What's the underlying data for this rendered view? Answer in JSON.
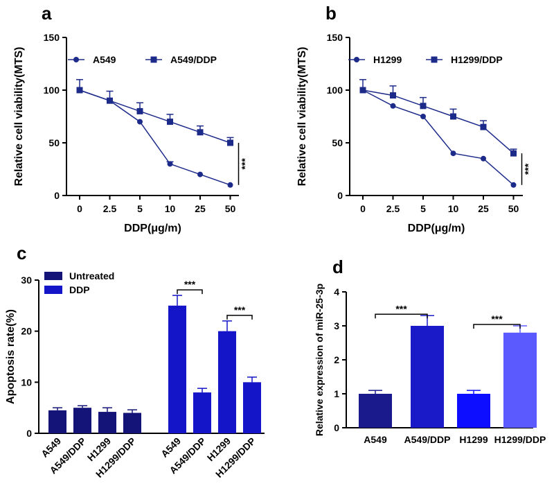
{
  "chart_data": [
    {
      "panel": "a",
      "type": "line",
      "xlabel": "DDP(μg/m)",
      "ylabel": "Relative  cell viability(MTS)",
      "categories": [
        "0",
        "2.5",
        "5",
        "10",
        "25",
        "50"
      ],
      "ylim": [
        0,
        150
      ],
      "yticks": [
        "0",
        "50",
        "100",
        "150"
      ],
      "legend_position": "top-left",
      "series": [
        {
          "name": "A549",
          "marker": "circle",
          "values": [
            100,
            90,
            70,
            30,
            20,
            10
          ],
          "errors": [
            0,
            0,
            0,
            2,
            0,
            0
          ]
        },
        {
          "name": "A549/DDP",
          "marker": "square",
          "values": [
            100,
            90,
            80,
            70,
            60,
            50
          ],
          "errors": [
            10,
            9,
            8,
            7,
            6,
            5
          ]
        }
      ],
      "significance": "***"
    },
    {
      "panel": "b",
      "type": "line",
      "xlabel": "DDP(μg/m)",
      "ylabel": "Relative  cell viability(MTS)",
      "categories": [
        "0",
        "2.5",
        "5",
        "10",
        "25",
        "50"
      ],
      "ylim": [
        0,
        150
      ],
      "yticks": [
        "0",
        "50",
        "100",
        "150"
      ],
      "legend_position": "top-left",
      "series": [
        {
          "name": "H1299",
          "marker": "circle",
          "values": [
            100,
            85,
            75,
            40,
            35,
            10
          ],
          "errors": [
            0,
            0,
            0,
            0,
            0,
            0
          ]
        },
        {
          "name": "H1299/DDP",
          "marker": "square",
          "values": [
            100,
            95,
            85,
            75,
            65,
            40
          ],
          "errors": [
            10,
            9,
            8,
            7,
            6,
            4
          ]
        }
      ],
      "significance": "***"
    },
    {
      "panel": "c",
      "type": "bar",
      "ylabel": "Apoptosis rate(%)",
      "ylim": [
        0,
        30
      ],
      "yticks": [
        "0",
        "10",
        "20",
        "30"
      ],
      "legend_position": "top-left",
      "legend": [
        "Untreated",
        "DDP"
      ],
      "categories": [
        "A549",
        "A549/DDP",
        "H1299",
        "H1299/DDP",
        "A549",
        "A549/DDP",
        "H1299",
        "H1299/DDP"
      ],
      "groups": [
        "Untreated",
        "Untreated",
        "Untreated",
        "Untreated",
        "DDP",
        "DDP",
        "DDP",
        "DDP"
      ],
      "values": [
        4.5,
        5.0,
        4.2,
        4.0,
        25.0,
        8.0,
        20.0,
        10.0
      ],
      "errors": [
        0.5,
        0.4,
        0.8,
        0.6,
        2.0,
        0.8,
        2.0,
        1.0
      ],
      "significance": [
        {
          "from": 4,
          "to": 5,
          "label": "***"
        },
        {
          "from": 6,
          "to": 7,
          "label": "***"
        }
      ]
    },
    {
      "panel": "d",
      "type": "bar",
      "ylabel": "Relative  expression of miR-25-3p",
      "ylim": [
        0,
        4
      ],
      "yticks": [
        "0",
        "1",
        "2",
        "3",
        "4"
      ],
      "categories": [
        "A549",
        "A549/DDP",
        "H1299",
        "H1299/DDP"
      ],
      "values": [
        1.0,
        3.0,
        1.0,
        2.8
      ],
      "errors": [
        0.1,
        0.3,
        0.1,
        0.2
      ],
      "colors": [
        "#1a1a8c",
        "#1a1ac8",
        "#0d0dff",
        "#5a5aff"
      ],
      "significance": [
        {
          "from": 0,
          "to": 1,
          "label": "***"
        },
        {
          "from": 2,
          "to": 3,
          "label": "***"
        }
      ]
    }
  ],
  "colors": {
    "navy": "#1c2a8a",
    "dark_bar": "#141478",
    "blue_bar": "#1414c8"
  }
}
